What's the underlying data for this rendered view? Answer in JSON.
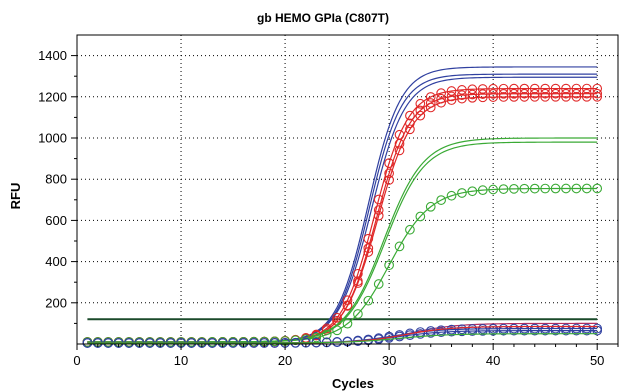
{
  "chart_data": {
    "type": "line",
    "title": "gb HEMO GPIa (C807T)",
    "xlabel": "Cycles",
    "ylabel": "RFU",
    "xlim": [
      0,
      52
    ],
    "ylim": [
      0,
      1500
    ],
    "xticks": [
      0,
      10,
      20,
      30,
      40,
      50
    ],
    "yticks": [
      200,
      400,
      600,
      800,
      1000,
      1200,
      1400
    ],
    "grid": true,
    "threshold": 120,
    "threshold_color": "#1a4a2a",
    "series": [
      {
        "color": "#3040a0",
        "markers": false,
        "plateau": 1345,
        "midpoint": 28.0,
        "slope": 1.55,
        "baseline": 10
      },
      {
        "color": "#3040a0",
        "markers": false,
        "plateau": 1310,
        "midpoint": 28.1,
        "slope": 1.55,
        "baseline": 10
      },
      {
        "color": "#3040a0",
        "markers": false,
        "plateau": 1295,
        "midpoint": 28.3,
        "slope": 1.6,
        "baseline": 10
      },
      {
        "color": "#e02828",
        "markers": true,
        "plateau": 1240,
        "midpoint": 28.6,
        "slope": 1.6,
        "baseline": 10
      },
      {
        "color": "#e02828",
        "markers": true,
        "plateau": 1215,
        "midpoint": 28.8,
        "slope": 1.6,
        "baseline": 10
      },
      {
        "color": "#e02828",
        "markers": true,
        "plateau": 1200,
        "midpoint": 28.9,
        "slope": 1.65,
        "baseline": 10
      },
      {
        "color": "#3aaa35",
        "markers": false,
        "plateau": 1000,
        "midpoint": 29.5,
        "slope": 1.9,
        "baseline": 10
      },
      {
        "color": "#3aaa35",
        "markers": false,
        "plateau": 980,
        "midpoint": 29.6,
        "slope": 1.9,
        "baseline": 10
      },
      {
        "color": "#3aaa35",
        "markers": true,
        "plateau": 755,
        "midpoint": 30.0,
        "slope": 2.0,
        "baseline": 10
      },
      {
        "color": "#b03060",
        "markers": false,
        "plateau": 100,
        "midpoint": 32.0,
        "slope": 2.2,
        "baseline": 5
      },
      {
        "color": "#3040a0",
        "markers": true,
        "plateau": 75,
        "midpoint": 30.5,
        "slope": 2.2,
        "baseline": 5
      },
      {
        "color": "#3040a0",
        "markers": true,
        "plateau": 65,
        "midpoint": 30.8,
        "slope": 2.2,
        "baseline": 5
      },
      {
        "color": "#e02828",
        "markers": false,
        "plateau": 85,
        "midpoint": 31.5,
        "slope": 2.2,
        "baseline": 5
      },
      {
        "color": "#3aaa35",
        "markers": false,
        "plateau": 50,
        "midpoint": 31.0,
        "slope": 2.4,
        "baseline": 5
      }
    ]
  }
}
